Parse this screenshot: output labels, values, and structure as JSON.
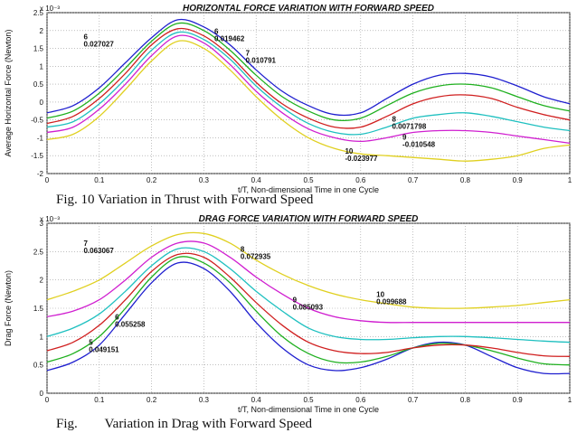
{
  "captions": {
    "top": "Fig. 10 Variation in Thrust with Forward Speed",
    "bottom": "Fig.        Variation in Drag with Forward Speed"
  },
  "chart_data": [
    {
      "type": "line",
      "title": "HORIZONTAL FORCE VARIATION WITH FORWARD SPEED",
      "xlabel": "t/T, Non-dimensional Time in one Cycle",
      "ylabel": "Average Horizontal Force (Newton)",
      "y_scale_label": "x 10⁻³",
      "xlim": [
        0,
        1
      ],
      "ylim": [
        -2,
        2.5
      ],
      "xticks": [
        "0",
        "0.1",
        "0.2",
        "0.3",
        "0.4",
        "0.5",
        "0.6",
        "0.7",
        "0.8",
        "0.9",
        "1"
      ],
      "yticks": [
        "-2",
        "-1.5",
        "-1",
        "-0.5",
        "0",
        "0.5",
        "1",
        "1.5",
        "2",
        "2.5"
      ],
      "grid": true,
      "x": [
        0,
        0.05,
        0.1,
        0.15,
        0.2,
        0.25,
        0.3,
        0.35,
        0.4,
        0.45,
        0.5,
        0.55,
        0.6,
        0.65,
        0.7,
        0.75,
        0.8,
        0.85,
        0.9,
        0.95,
        1
      ],
      "series": [
        {
          "color": "#1f1fcf",
          "values": [
            -0.3,
            -0.1,
            0.4,
            1.1,
            1.8,
            2.3,
            2.1,
            1.6,
            0.9,
            0.3,
            -0.1,
            -0.35,
            -0.3,
            0.1,
            0.5,
            0.75,
            0.8,
            0.7,
            0.45,
            0.15,
            -0.05
          ]
        },
        {
          "color": "#1fb01f",
          "values": [
            -0.45,
            -0.25,
            0.25,
            0.95,
            1.7,
            2.2,
            2.0,
            1.45,
            0.75,
            0.15,
            -0.25,
            -0.5,
            -0.45,
            -0.1,
            0.25,
            0.45,
            0.5,
            0.4,
            0.15,
            -0.1,
            -0.25
          ]
        },
        {
          "color": "#d01f1f",
          "values": [
            -0.6,
            -0.4,
            0.1,
            0.8,
            1.6,
            2.05,
            1.85,
            1.3,
            0.55,
            -0.05,
            -0.45,
            -0.7,
            -0.7,
            -0.4,
            -0.05,
            0.15,
            0.2,
            0.1,
            -0.15,
            -0.35,
            -0.5
          ]
        },
        {
          "color": "#1fc0c0",
          "values": [
            -0.7,
            -0.55,
            -0.05,
            0.65,
            1.45,
            1.95,
            1.75,
            1.2,
            0.45,
            -0.15,
            -0.6,
            -0.85,
            -0.9,
            -0.7,
            -0.45,
            -0.35,
            -0.3,
            -0.4,
            -0.55,
            -0.7,
            -0.8
          ]
        },
        {
          "color": "#d01fd0",
          "values": [
            -0.85,
            -0.7,
            -0.2,
            0.5,
            1.3,
            1.85,
            1.65,
            1.05,
            0.3,
            -0.3,
            -0.75,
            -1.0,
            -1.1,
            -1.0,
            -0.85,
            -0.8,
            -0.8,
            -0.85,
            -0.95,
            -1.05,
            -1.15
          ]
        },
        {
          "color": "#e0d020",
          "values": [
            -1.05,
            -0.9,
            -0.4,
            0.35,
            1.15,
            1.7,
            1.5,
            0.9,
            0.15,
            -0.5,
            -1.0,
            -1.3,
            -1.45,
            -1.5,
            -1.55,
            -1.6,
            -1.65,
            -1.6,
            -1.5,
            -1.3,
            -1.2
          ]
        }
      ],
      "annotations": [
        {
          "label": "6",
          "value": "0.027027",
          "x": 0.07,
          "y": 1.75
        },
        {
          "label": "6",
          "value": "0.019462",
          "x": 0.32,
          "y": 1.9
        },
        {
          "label": "7",
          "value": "0.010791",
          "x": 0.38,
          "y": 1.3
        },
        {
          "label": "8",
          "value": "0.0071798",
          "x": 0.66,
          "y": -0.55
        },
        {
          "label": "9",
          "value": "-0.010548",
          "x": 0.68,
          "y": -1.05
        },
        {
          "label": "10",
          "value": "-0.023977",
          "x": 0.57,
          "y": -1.45
        }
      ]
    },
    {
      "type": "line",
      "title": "DRAG FORCE VARIATION WITH FORWARD SPEED",
      "xlabel": "t/T, Non-dimensional Time in one Cycle",
      "ylabel": "Drag Force (Newton)",
      "y_scale_label": "x 10⁻³",
      "xlim": [
        0,
        1
      ],
      "ylim": [
        0,
        3
      ],
      "xticks": [
        "0",
        "0.1",
        "0.2",
        "0.3",
        "0.4",
        "0.5",
        "0.6",
        "0.7",
        "0.8",
        "0.9",
        "1"
      ],
      "yticks": [
        "0",
        "0.5",
        "1",
        "1.5",
        "2",
        "2.5",
        "3"
      ],
      "grid": true,
      "x": [
        0,
        0.05,
        0.1,
        0.15,
        0.2,
        0.25,
        0.3,
        0.35,
        0.4,
        0.45,
        0.5,
        0.55,
        0.6,
        0.65,
        0.7,
        0.75,
        0.8,
        0.85,
        0.9,
        0.95,
        1
      ],
      "series": [
        {
          "color": "#1f1fcf",
          "values": [
            0.4,
            0.55,
            0.85,
            1.4,
            1.95,
            2.3,
            2.2,
            1.8,
            1.25,
            0.8,
            0.5,
            0.4,
            0.45,
            0.6,
            0.8,
            0.9,
            0.85,
            0.65,
            0.45,
            0.35,
            0.35
          ]
        },
        {
          "color": "#1fb01f",
          "values": [
            0.55,
            0.7,
            1.0,
            1.5,
            2.05,
            2.4,
            2.3,
            1.95,
            1.45,
            1.0,
            0.7,
            0.55,
            0.55,
            0.65,
            0.8,
            0.88,
            0.85,
            0.75,
            0.62,
            0.52,
            0.5
          ]
        },
        {
          "color": "#d01f1f",
          "values": [
            0.75,
            0.9,
            1.2,
            1.65,
            2.15,
            2.45,
            2.4,
            2.05,
            1.6,
            1.2,
            0.9,
            0.75,
            0.7,
            0.72,
            0.8,
            0.85,
            0.85,
            0.8,
            0.72,
            0.66,
            0.65
          ]
        },
        {
          "color": "#1fc0c0",
          "values": [
            1.0,
            1.15,
            1.4,
            1.8,
            2.25,
            2.55,
            2.5,
            2.2,
            1.8,
            1.45,
            1.15,
            1.0,
            0.95,
            0.95,
            0.98,
            1.0,
            1.0,
            0.98,
            0.95,
            0.92,
            0.9
          ]
        },
        {
          "color": "#d01fd0",
          "values": [
            1.35,
            1.45,
            1.65,
            2.0,
            2.4,
            2.65,
            2.65,
            2.4,
            2.05,
            1.75,
            1.5,
            1.35,
            1.28,
            1.25,
            1.25,
            1.25,
            1.25,
            1.25,
            1.25,
            1.25,
            1.25
          ]
        },
        {
          "color": "#e0d020",
          "values": [
            1.65,
            1.8,
            2.0,
            2.3,
            2.6,
            2.8,
            2.82,
            2.65,
            2.35,
            2.1,
            1.9,
            1.75,
            1.65,
            1.58,
            1.52,
            1.5,
            1.5,
            1.52,
            1.55,
            1.6,
            1.65
          ]
        }
      ],
      "annotations": [
        {
          "label": "7",
          "value": "0.063067",
          "x": 0.07,
          "y": 2.6
        },
        {
          "label": "8",
          "value": "0.072935",
          "x": 0.37,
          "y": 2.5
        },
        {
          "label": "9",
          "value": "0.085093",
          "x": 0.47,
          "y": 1.6
        },
        {
          "label": "10",
          "value": "0.099688",
          "x": 0.63,
          "y": 1.7
        },
        {
          "label": "6",
          "value": "0.055258",
          "x": 0.13,
          "y": 1.3
        },
        {
          "label": "5",
          "value": "0.049151",
          "x": 0.08,
          "y": 0.85
        }
      ]
    }
  ]
}
